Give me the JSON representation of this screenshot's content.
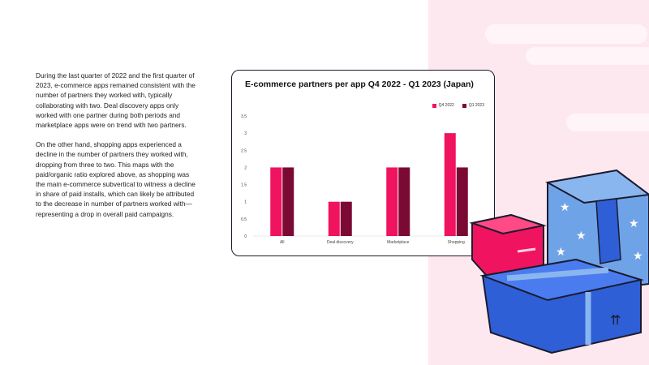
{
  "intro": {
    "paragraph1": "During the last quarter of 2022 and the first quarter of 2023, e-commerce apps remained consistent with the number of partners they worked with, typically collaborating with two. Deal discovery apps only worked with one partner during both periods and marketplace apps were on trend with two partners.",
    "paragraph2": "On the other hand, shopping apps experienced a decline in the number of partners they worked with, dropping from three to two. This maps with the paid/organic ratio explored above, as shopping was the main e-commerce subvertical to witness a decline in share of paid installs, which can likely be attributed to the decrease in number of partners worked with—representing a drop in overall paid campaigns."
  },
  "colors": {
    "q4": "#f0135f",
    "q1": "#7a0a33",
    "panel": "#fde8ef"
  },
  "chart_data": {
    "type": "bar",
    "title": "E-commerce partners per app Q4 2022 - Q1 2023  (Japan)",
    "categories": [
      "All",
      "Deal discovery",
      "Marketplace",
      "Shopping"
    ],
    "series": [
      {
        "name": "Q4 2022",
        "values": [
          2,
          1,
          2,
          3
        ]
      },
      {
        "name": "Q1 2023",
        "values": [
          2,
          1,
          2,
          2
        ]
      }
    ],
    "yticks": [
      "0",
      "0.5",
      "1",
      "1.5",
      "2",
      "2.5",
      "3",
      "3.5"
    ],
    "ylim": [
      0,
      3.5
    ],
    "xlabel": "",
    "ylabel": "",
    "grid": false,
    "legend_position": "top-right"
  }
}
